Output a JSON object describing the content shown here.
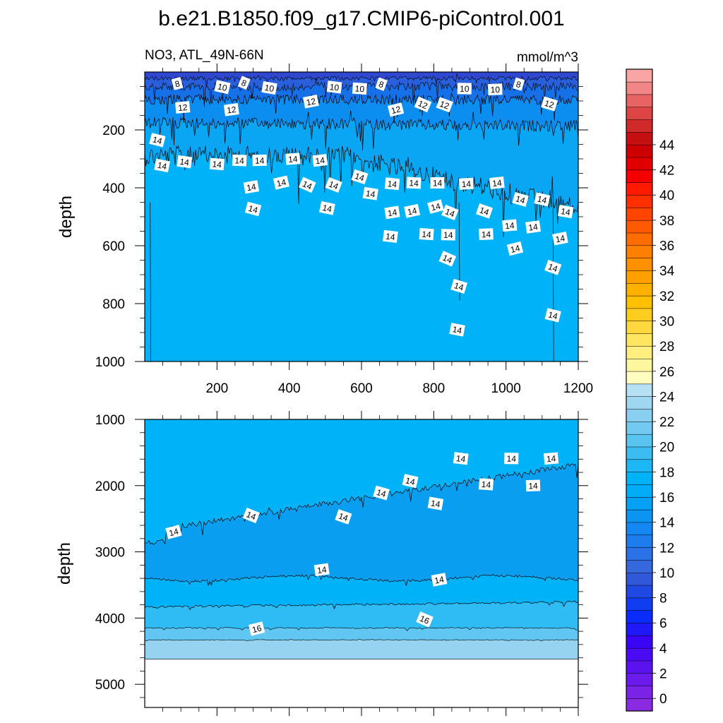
{
  "chart_data": {
    "type": "heatmap",
    "title": "b.e21.B1850.f09_g17.CMIP6-piControl.001",
    "variable_label": "NO3, ATL_49N-66N",
    "units": "mmol/m^3",
    "colors": {
      "shallow_mid": "#00b2f7",
      "deep_core": "#0a9ef1",
      "band_16": "#2fbbf3",
      "band_18": "#61c6f1",
      "band_20": "#96d3f0",
      "band_22": "#b6e0f4",
      "surface_low": "#2f58d7",
      "surface_mid": "#1670e8",
      "surface_10_12": "#0b8ef0"
    },
    "panels": [
      {
        "name": "upper",
        "xlim": [
          0,
          1200
        ],
        "ylim": [
          1000,
          0
        ],
        "ylabel": "depth",
        "x_tick_labels": [
          "200",
          "400",
          "600",
          "800",
          "1000",
          "1200"
        ],
        "y_tick_labels": [
          "200",
          "400",
          "600",
          "800",
          "1000"
        ],
        "contour_labels": [
          {
            "text": "8",
            "x": 90,
            "y": 40
          },
          {
            "text": "8",
            "x": 275,
            "y": 37
          },
          {
            "text": "8",
            "x": 655,
            "y": 42
          },
          {
            "text": "8",
            "x": 1035,
            "y": 42
          },
          {
            "text": "10",
            "x": 215,
            "y": 52
          },
          {
            "text": "10",
            "x": 345,
            "y": 55
          },
          {
            "text": "10",
            "x": 525,
            "y": 52
          },
          {
            "text": "10",
            "x": 595,
            "y": 57
          },
          {
            "text": "10",
            "x": 885,
            "y": 57
          },
          {
            "text": "10",
            "x": 970,
            "y": 60
          },
          {
            "text": "12",
            "x": 105,
            "y": 122
          },
          {
            "text": "12",
            "x": 240,
            "y": 130
          },
          {
            "text": "12",
            "x": 460,
            "y": 102
          },
          {
            "text": "12",
            "x": 695,
            "y": 130
          },
          {
            "text": "12",
            "x": 770,
            "y": 112
          },
          {
            "text": "12",
            "x": 830,
            "y": 113
          },
          {
            "text": "12",
            "x": 1120,
            "y": 110
          },
          {
            "text": "14",
            "x": 35,
            "y": 235
          },
          {
            "text": "14",
            "x": 48,
            "y": 323
          },
          {
            "text": "14",
            "x": 110,
            "y": 310
          },
          {
            "text": "14",
            "x": 200,
            "y": 318
          },
          {
            "text": "14",
            "x": 262,
            "y": 305
          },
          {
            "text": "14",
            "x": 318,
            "y": 305
          },
          {
            "text": "14",
            "x": 410,
            "y": 300
          },
          {
            "text": "14",
            "x": 485,
            "y": 305
          },
          {
            "text": "14",
            "x": 295,
            "y": 397
          },
          {
            "text": "14",
            "x": 378,
            "y": 382
          },
          {
            "text": "14",
            "x": 450,
            "y": 390
          },
          {
            "text": "14",
            "x": 523,
            "y": 390
          },
          {
            "text": "14",
            "x": 595,
            "y": 362
          },
          {
            "text": "14",
            "x": 300,
            "y": 473
          },
          {
            "text": "14",
            "x": 505,
            "y": 470
          },
          {
            "text": "14",
            "x": 625,
            "y": 420
          },
          {
            "text": "14",
            "x": 685,
            "y": 386
          },
          {
            "text": "14",
            "x": 745,
            "y": 383
          },
          {
            "text": "14",
            "x": 810,
            "y": 383
          },
          {
            "text": "14",
            "x": 890,
            "y": 386
          },
          {
            "text": "14",
            "x": 975,
            "y": 383
          },
          {
            "text": "14",
            "x": 685,
            "y": 485
          },
          {
            "text": "14",
            "x": 740,
            "y": 480
          },
          {
            "text": "14",
            "x": 805,
            "y": 465
          },
          {
            "text": "14",
            "x": 845,
            "y": 485
          },
          {
            "text": "14",
            "x": 940,
            "y": 480
          },
          {
            "text": "14",
            "x": 1040,
            "y": 440
          },
          {
            "text": "14",
            "x": 1100,
            "y": 440
          },
          {
            "text": "14",
            "x": 1165,
            "y": 482
          },
          {
            "text": "14",
            "x": 680,
            "y": 568
          },
          {
            "text": "14",
            "x": 780,
            "y": 560
          },
          {
            "text": "14",
            "x": 840,
            "y": 562
          },
          {
            "text": "14",
            "x": 945,
            "y": 560
          },
          {
            "text": "14",
            "x": 1010,
            "y": 530
          },
          {
            "text": "14",
            "x": 1075,
            "y": 535
          },
          {
            "text": "14",
            "x": 1150,
            "y": 575
          },
          {
            "text": "14",
            "x": 1025,
            "y": 610
          },
          {
            "text": "14",
            "x": 838,
            "y": 645
          },
          {
            "text": "14",
            "x": 1130,
            "y": 675
          },
          {
            "text": "14",
            "x": 870,
            "y": 740
          },
          {
            "text": "14",
            "x": 1130,
            "y": 840
          },
          {
            "text": "14",
            "x": 865,
            "y": 890
          }
        ]
      },
      {
        "name": "lower",
        "xlim": [
          0,
          1200
        ],
        "ylim": [
          5350,
          1000
        ],
        "ylabel": "depth",
        "data_bottom_depth": 4620,
        "y_tick_labels": [
          "1000",
          "2000",
          "3000",
          "4000",
          "5000"
        ],
        "contour_labels": [
          {
            "text": "14",
            "x": 80,
            "y": 2700
          },
          {
            "text": "14",
            "x": 295,
            "y": 2450
          },
          {
            "text": "14",
            "x": 550,
            "y": 2470
          },
          {
            "text": "14",
            "x": 655,
            "y": 2110
          },
          {
            "text": "14",
            "x": 735,
            "y": 1930
          },
          {
            "text": "14",
            "x": 805,
            "y": 2270
          },
          {
            "text": "14",
            "x": 875,
            "y": 1590
          },
          {
            "text": "14",
            "x": 945,
            "y": 1980
          },
          {
            "text": "14",
            "x": 1015,
            "y": 1590
          },
          {
            "text": "14",
            "x": 1075,
            "y": 2000
          },
          {
            "text": "14",
            "x": 1125,
            "y": 1590
          },
          {
            "text": "14",
            "x": 490,
            "y": 3270
          },
          {
            "text": "14",
            "x": 815,
            "y": 3420
          },
          {
            "text": "16",
            "x": 310,
            "y": 4160
          },
          {
            "text": "16",
            "x": 775,
            "y": 4020
          }
        ]
      }
    ],
    "colorbar": {
      "levels": [
        0,
        2,
        4,
        6,
        8,
        10,
        12,
        14,
        16,
        18,
        20,
        22,
        24,
        26,
        28,
        30,
        32,
        34,
        36,
        38,
        40,
        42,
        44
      ],
      "colors": [
        "#8a2be2",
        "#7a22e6",
        "#6a1aea",
        "#5a12ee",
        "#4a0bf2",
        "#3a04f5",
        "#1f18f7",
        "#0a2cf8",
        "#103df0",
        "#2048e2",
        "#3058d8",
        "#3568dd",
        "#2a72e5",
        "#1d7ded",
        "#1488f2",
        "#0c94f3",
        "#06a0f5",
        "#02acf6",
        "#00b2f7",
        "#1cb7f4",
        "#3dbcf2",
        "#5ac4f1",
        "#73caf0",
        "#8acff0",
        "#9fd6f0",
        "#b6e0f4",
        "#fffdc0",
        "#fff6a0",
        "#ffef80",
        "#ffe560",
        "#ffd840",
        "#ffcc20",
        "#ffc000",
        "#ffb000",
        "#ffa000",
        "#ff9000",
        "#ff7f00",
        "#ff6c00",
        "#ff5a00",
        "#ff4500",
        "#ff3000",
        "#ff1a00",
        "#f50000",
        "#e00000",
        "#cc0000",
        "#c41010",
        "#d02a2a",
        "#dd4444",
        "#e86363",
        "#f28585",
        "#faa5a5"
      ],
      "tick_labels": [
        "0",
        "2",
        "4",
        "6",
        "8",
        "10",
        "12",
        "14",
        "16",
        "18",
        "20",
        "22",
        "24",
        "26",
        "28",
        "30",
        "32",
        "34",
        "36",
        "38",
        "40",
        "42",
        "44"
      ]
    }
  }
}
